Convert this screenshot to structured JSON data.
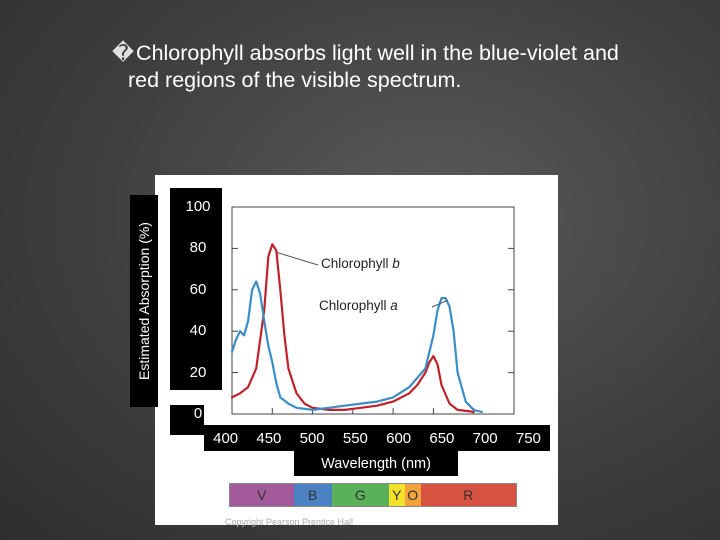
{
  "title": {
    "bullet": "�",
    "line1": "Chlorophyll absorbs light well in the blue-violet and",
    "line2": "red regions of the visible spectrum."
  },
  "chart_data": {
    "type": "line",
    "xlabel": "Wavelength (nm)",
    "ylabel": "Estimated Absorption (%)",
    "xlim": [
      400,
      750
    ],
    "ylim": [
      0,
      100
    ],
    "x_ticks": [
      "400",
      "450",
      "500",
      "550",
      "600",
      "650",
      "700",
      "750"
    ],
    "y_ticks": [
      "100",
      "80",
      "60",
      "40",
      "20",
      "0"
    ],
    "grid": false,
    "series": [
      {
        "name": "Chlorophyll b",
        "color": "#c0222a",
        "x": [
          400,
          410,
          420,
          430,
          440,
          445,
          450,
          455,
          460,
          465,
          470,
          480,
          490,
          500,
          520,
          540,
          560,
          580,
          600,
          620,
          630,
          640,
          645,
          650,
          655,
          660,
          670,
          680,
          700
        ],
        "y": [
          8,
          10,
          13,
          22,
          50,
          76,
          82,
          79,
          60,
          38,
          22,
          10,
          5,
          3,
          2,
          2,
          3,
          4,
          6,
          10,
          14,
          20,
          25,
          28,
          24,
          14,
          5,
          2,
          1
        ]
      },
      {
        "name": "Chlorophyll a",
        "color": "#3b8dc8",
        "x": [
          400,
          405,
          410,
          415,
          420,
          425,
          430,
          435,
          440,
          445,
          450,
          455,
          460,
          470,
          480,
          500,
          520,
          540,
          560,
          580,
          600,
          620,
          640,
          650,
          655,
          660,
          665,
          670,
          675,
          680,
          690,
          700,
          710
        ],
        "y": [
          30,
          36,
          40,
          38,
          45,
          60,
          64,
          58,
          45,
          33,
          25,
          15,
          8,
          5,
          3,
          2,
          3,
          4,
          5,
          6,
          8,
          13,
          22,
          38,
          50,
          56,
          56,
          52,
          40,
          20,
          6,
          2,
          1
        ]
      }
    ]
  },
  "legend": {
    "b_text": "Chlorophyll ",
    "b_italic": "b",
    "a_text": "Chlorophyll ",
    "a_italic": "a"
  },
  "spectrum": [
    {
      "label": "V",
      "color": "#a25a9a",
      "weight": 2.0
    },
    {
      "label": "B",
      "color": "#4a82c4",
      "weight": 1.2
    },
    {
      "label": "G",
      "color": "#5ab15a",
      "weight": 1.8
    },
    {
      "label": "Y",
      "color": "#f2e22a",
      "weight": 0.5
    },
    {
      "label": "O",
      "color": "#f2a33a",
      "weight": 0.5
    },
    {
      "label": "R",
      "color": "#d8533f",
      "weight": 3.0
    }
  ],
  "copyright": "Copyright Pearson Prentice Hall"
}
